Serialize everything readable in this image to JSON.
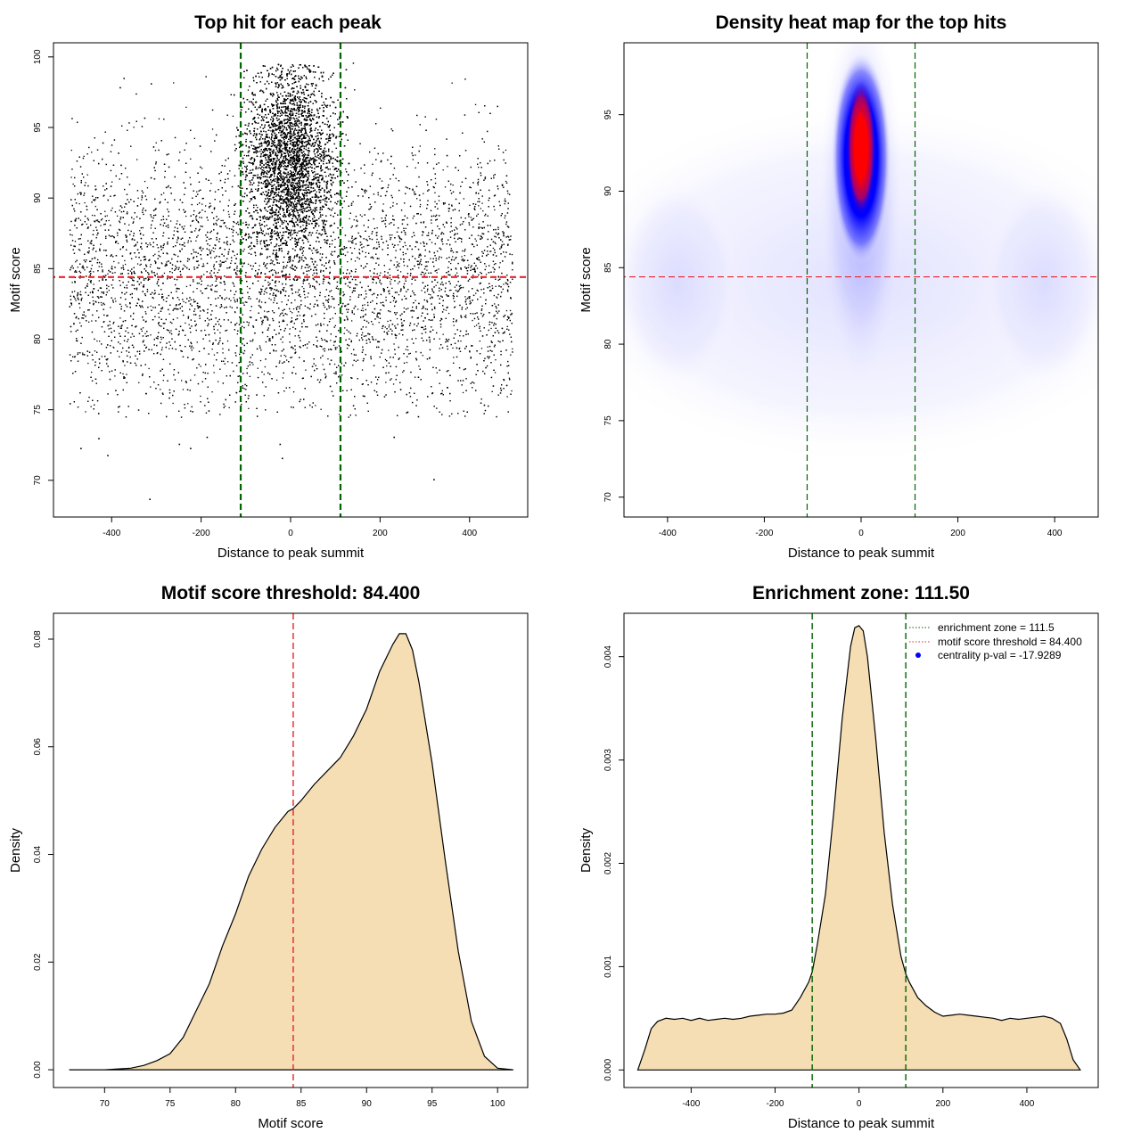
{
  "chart_data": [
    {
      "type": "scatter",
      "title": "Top hit for each peak",
      "xlabel": "Distance to peak summit",
      "ylabel": "Motif score",
      "xlim": [
        -530,
        530
      ],
      "ylim": [
        67.4,
        101
      ],
      "xticks": [
        -400,
        -200,
        0,
        200,
        400
      ],
      "yticks": [
        70,
        75,
        80,
        85,
        90,
        95,
        100
      ],
      "xtick_labels": [
        "-400",
        "-200",
        "0",
        "200",
        "400"
      ],
      "ytick_labels": [
        "70",
        "75",
        "80",
        "85",
        "90",
        "95",
        "100"
      ],
      "background": {
        "x_range": [
          -495,
          495
        ],
        "score_mean": 84.5,
        "score_sd": 4.6,
        "count": 9000
      },
      "central": {
        "x_center": 0,
        "x_sd": 50,
        "score_mean": 92.5,
        "score_sd": 3.3,
        "count": 14000
      },
      "outliers": [
        [
          -316,
          68.7
        ],
        [
          319,
          70.1
        ],
        [
          -470,
          72.3
        ],
        [
          -430,
          73.0
        ],
        [
          -250,
          72.6
        ],
        [
          -188,
          73.1
        ],
        [
          -20,
          71.6
        ],
        [
          -25,
          72.6
        ],
        [
          -410,
          71.8
        ],
        [
          230,
          73.1
        ],
        [
          -225,
          72.3
        ]
      ],
      "hlines": [
        {
          "y": 84.4,
          "color": "#e8232a"
        }
      ],
      "vlines": [
        {
          "x": -111.5,
          "color": "#006400"
        },
        {
          "x": 111.5,
          "color": "#006400"
        }
      ]
    },
    {
      "type": "heatmap",
      "title": "Density heat map for the top hits",
      "xlabel": "Distance to peak summit",
      "ylabel": "Motif score",
      "xlim": [
        -490,
        490
      ],
      "ylim": [
        68.7,
        99.7
      ],
      "xticks": [
        -400,
        -200,
        0,
        200,
        400
      ],
      "yticks": [
        70,
        75,
        80,
        85,
        90,
        95
      ],
      "xtick_labels": [
        "-400",
        "-200",
        "0",
        "200",
        "400"
      ],
      "ytick_labels": [
        "70",
        "75",
        "80",
        "85",
        "90",
        "95"
      ],
      "peak": {
        "x": 0,
        "y": 92.8
      },
      "colors": [
        "#ffffff",
        "#0000ff",
        "#ff0000"
      ],
      "hlines": [
        {
          "y": 84.4,
          "color": "#e8232a"
        }
      ],
      "vlines": [
        {
          "x": -111.5,
          "color": "#006400"
        },
        {
          "x": 111.5,
          "color": "#006400"
        }
      ]
    },
    {
      "type": "area",
      "title": "Motif score threshold: 84.400",
      "xlabel": "Motif score",
      "ylabel": "Density",
      "xlim": [
        66.1,
        102.3
      ],
      "ylim": [
        -0.0033,
        0.0848
      ],
      "xticks": [
        70,
        75,
        80,
        85,
        90,
        95,
        100
      ],
      "yticks": [
        0.0,
        0.02,
        0.04,
        0.06,
        0.08
      ],
      "xtick_labels": [
        "70",
        "75",
        "80",
        "85",
        "90",
        "95",
        "100"
      ],
      "ytick_labels": [
        "0.00",
        "0.02",
        "0.04",
        "0.06",
        "0.08"
      ],
      "fill": "#f5deb3",
      "curve_x": [
        67.3,
        70,
        72,
        73,
        74,
        75,
        76,
        77,
        78,
        79,
        80,
        81,
        82,
        83,
        84,
        84.4,
        85,
        86,
        87,
        88,
        89,
        90,
        91,
        92,
        92.5,
        93,
        93.5,
        94,
        95,
        96,
        97,
        98,
        99,
        100,
        101.2
      ],
      "curve_y": [
        0.0,
        0.0,
        0.0003,
        0.0008,
        0.0017,
        0.003,
        0.006,
        0.011,
        0.016,
        0.023,
        0.029,
        0.036,
        0.041,
        0.045,
        0.048,
        0.0485,
        0.05,
        0.053,
        0.0555,
        0.058,
        0.062,
        0.067,
        0.074,
        0.079,
        0.081,
        0.081,
        0.078,
        0.072,
        0.057,
        0.039,
        0.022,
        0.009,
        0.0025,
        0.0003,
        0.0
      ],
      "vlines": [
        {
          "x": 84.4,
          "color": "#e8232a"
        }
      ]
    },
    {
      "type": "area",
      "title": "Enrichment zone: 111.50",
      "xlabel": "Distance to peak summit",
      "ylabel": "Density",
      "xlim": [
        -560,
        570
      ],
      "ylim": [
        -0.00017,
        0.00442
      ],
      "xticks": [
        -400,
        -200,
        0,
        200,
        400
      ],
      "yticks": [
        0.0,
        0.001,
        0.002,
        0.003,
        0.004
      ],
      "xtick_labels": [
        "-400",
        "-200",
        "0",
        "200",
        "400"
      ],
      "ytick_labels": [
        "0.000",
        "0.001",
        "0.002",
        "0.003",
        "0.004"
      ],
      "fill": "#f5deb3",
      "curve_x": [
        -527,
        -510,
        -495,
        -480,
        -460,
        -440,
        -420,
        -400,
        -380,
        -360,
        -340,
        -320,
        -300,
        -280,
        -260,
        -240,
        -220,
        -200,
        -180,
        -160,
        -140,
        -120,
        -111.5,
        -100,
        -80,
        -60,
        -40,
        -20,
        -10,
        0,
        10,
        20,
        40,
        60,
        80,
        100,
        111.5,
        120,
        140,
        160,
        180,
        200,
        220,
        240,
        260,
        280,
        300,
        320,
        340,
        360,
        380,
        400,
        420,
        440,
        460,
        480,
        495,
        510,
        527
      ],
      "curve_y": [
        0.0,
        0.0002,
        0.0004,
        0.00047,
        0.0005,
        0.00049,
        0.0005,
        0.00048,
        0.0005,
        0.00048,
        0.00049,
        0.0005,
        0.00049,
        0.0005,
        0.00052,
        0.00053,
        0.00054,
        0.00054,
        0.00055,
        0.00058,
        0.0007,
        0.00085,
        0.00095,
        0.0012,
        0.0017,
        0.0025,
        0.0034,
        0.0041,
        0.00428,
        0.0043,
        0.00425,
        0.004,
        0.0032,
        0.0023,
        0.0016,
        0.0011,
        0.00093,
        0.00085,
        0.0007,
        0.00062,
        0.00056,
        0.00052,
        0.00053,
        0.00054,
        0.00053,
        0.00052,
        0.00051,
        0.0005,
        0.00048,
        0.0005,
        0.00049,
        0.0005,
        0.00051,
        0.00052,
        0.0005,
        0.00045,
        0.0003,
        0.0001,
        0.0
      ],
      "vlines": [
        {
          "x": -111.5,
          "color": "#006400"
        },
        {
          "x": 111.5,
          "color": "#006400"
        }
      ],
      "legend": {
        "position": "top-right",
        "entries": [
          {
            "label": "enrichment zone = 111.5",
            "kind": "dotted-line",
            "color": "#006400"
          },
          {
            "label": "motif score threshold = 84.400",
            "kind": "dotted-line",
            "color": "#e8232a"
          },
          {
            "label": "centrality p-val = -17.9289",
            "kind": "point",
            "color": "#0000ff"
          }
        ]
      }
    }
  ]
}
